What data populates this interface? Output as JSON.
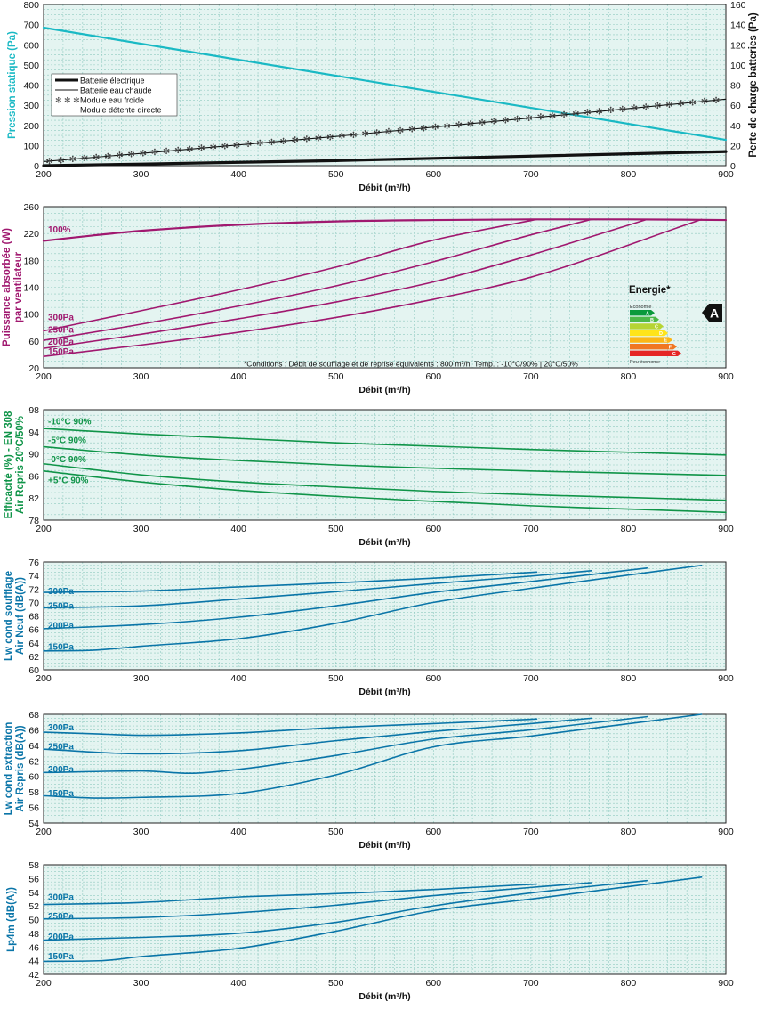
{
  "colors": {
    "background": "#e4f4f1",
    "grid": "#8fc9c0",
    "teal": "#1ab9c4",
    "purple": "#a0186f",
    "green": "#0f9448",
    "blue": "#0a75a8",
    "dark": "#111111"
  },
  "chart_data": [
    {
      "type": "line",
      "xlabel": "Débit (m³/h)",
      "ylabel": "Pression statique (Pa)",
      "ylabel_right": "Perte de charge batteries (Pa)",
      "xlim": [
        200,
        900
      ],
      "ylim": [
        0,
        800
      ],
      "ylim_right": [
        0,
        160
      ],
      "x_ticks": [
        200,
        300,
        400,
        500,
        600,
        700,
        800,
        900
      ],
      "y_ticks": [
        0,
        100,
        200,
        300,
        400,
        500,
        600,
        700,
        800
      ],
      "y_ticks_right": [
        0,
        20,
        40,
        60,
        80,
        100,
        120,
        140,
        160
      ],
      "grid": true,
      "legend_position": "left",
      "legend": [
        {
          "label": "Batterie électrique",
          "style": "thick"
        },
        {
          "label": "Batterie eau chaude",
          "style": "thin"
        },
        {
          "label": "Module eau froide",
          "style": "star",
          "symbol": "✻ ✻ ✻"
        },
        {
          "label": "Module détente directe",
          "style": "none"
        }
      ],
      "series": [
        {
          "axis": "left",
          "style": "teal",
          "x": [
            200,
            900
          ],
          "y": [
            685,
            128
          ]
        },
        {
          "axis": "right",
          "style": "thick",
          "x": [
            200,
            500,
            900
          ],
          "y": [
            0,
            5,
            14
          ]
        },
        {
          "axis": "right",
          "style": "thin",
          "x": [
            200,
            500,
            900
          ],
          "y": [
            4,
            29,
            66
          ]
        },
        {
          "axis": "right",
          "style": "star",
          "x": [
            200,
            500,
            900
          ],
          "y": [
            4,
            29,
            66
          ]
        }
      ]
    },
    {
      "type": "line",
      "xlabel": "Débit (m³/h)",
      "ylabel": "Puissance absorbée (W)",
      "ylabel2": "par ventilateur",
      "xlim": [
        200,
        900
      ],
      "ylim": [
        20,
        260
      ],
      "x_ticks": [
        200,
        300,
        400,
        500,
        600,
        700,
        800,
        900
      ],
      "y_ticks": [
        20,
        60,
        100,
        140,
        180,
        220,
        260
      ],
      "grid": true,
      "note": "*Conditions : Débit de soufflage et de reprise équivalents : 800 m³/h. Temp. : -10°C/90% | 20°C/50%",
      "energy": {
        "title": "Energie*",
        "top_label": "Economie",
        "bottom_label": "Peu économe",
        "classes": [
          "A",
          "B",
          "C",
          "D",
          "E",
          "F",
          "G"
        ],
        "class_colors": [
          "#0a9a3c",
          "#4db848",
          "#b6d433",
          "#ffe41a",
          "#fbb616",
          "#f07621",
          "#e52525"
        ],
        "rating": "A"
      },
      "series_labels": [
        {
          "text": "100%",
          "x": 200,
          "y": 227
        },
        {
          "text": "300Pa",
          "x": 200,
          "y": 96
        },
        {
          "text": "250Pa",
          "x": 200,
          "y": 78
        },
        {
          "text": "200Pa",
          "x": 200,
          "y": 60
        },
        {
          "text": "150Pa",
          "x": 200,
          "y": 45
        }
      ],
      "series": [
        {
          "name": "100%",
          "x": [
            200,
            250,
            300,
            400,
            500,
            600,
            700,
            800,
            900
          ],
          "y": [
            209,
            217,
            224,
            233,
            238,
            240,
            241,
            241,
            240
          ]
        },
        {
          "name": "300Pa",
          "x": [
            200,
            300,
            400,
            500,
            600,
            706
          ],
          "y": [
            75,
            105,
            136,
            170,
            210,
            241
          ]
        },
        {
          "name": "250Pa",
          "x": [
            200,
            300,
            400,
            500,
            600,
            700,
            762
          ],
          "y": [
            61,
            85,
            112,
            142,
            178,
            218,
            241
          ]
        },
        {
          "name": "200Pa",
          "x": [
            200,
            300,
            400,
            500,
            600,
            700,
            819
          ],
          "y": [
            49,
            70,
            93,
            118,
            148,
            188,
            241
          ]
        },
        {
          "name": "150Pa",
          "x": [
            200,
            300,
            400,
            500,
            600,
            700,
            875
          ],
          "y": [
            37,
            54,
            73,
            95,
            122,
            155,
            241
          ]
        }
      ]
    },
    {
      "type": "line",
      "xlabel": "Débit (m³/h)",
      "ylabel": "Efficacité (%) - EN 308",
      "ylabel2": "Air Repris 20°C/50%",
      "xlim": [
        200,
        900
      ],
      "ylim": [
        78,
        98
      ],
      "x_ticks": [
        200,
        300,
        400,
        500,
        600,
        700,
        800,
        900
      ],
      "y_ticks": [
        78,
        82,
        86,
        90,
        94,
        98
      ],
      "grid": true,
      "series_labels": [
        {
          "text": "-10°C 90%",
          "x": 200,
          "y": 96
        },
        {
          "text": "-5°C 90%",
          "x": 200,
          "y": 92.6
        },
        {
          "text": "-0°C 90%",
          "x": 200,
          "y": 89.1
        },
        {
          "text": "+5°C 90%",
          "x": 200,
          "y": 85.3
        }
      ],
      "series": [
        {
          "name": "-10°C 90%",
          "x": [
            200,
            300,
            400,
            500,
            600,
            700,
            800,
            900
          ],
          "y": [
            94.6,
            93.6,
            92.8,
            92.0,
            91.4,
            90.8,
            90.3,
            89.8
          ]
        },
        {
          "name": "-5°C 90%",
          "x": [
            200,
            300,
            400,
            500,
            600,
            700,
            800,
            900
          ],
          "y": [
            91.3,
            89.8,
            88.8,
            88.0,
            87.4,
            86.9,
            86.5,
            86.1
          ]
        },
        {
          "name": "-0°C 90%",
          "x": [
            200,
            300,
            400,
            500,
            600,
            700,
            800,
            900
          ],
          "y": [
            88.2,
            86.2,
            84.9,
            84.0,
            83.2,
            82.6,
            82.1,
            81.6
          ]
        },
        {
          "name": "+5°C 90%",
          "x": [
            200,
            300,
            400,
            500,
            600,
            700,
            800,
            900
          ],
          "y": [
            86.9,
            84.9,
            83.4,
            82.3,
            81.4,
            80.6,
            80.0,
            79.4
          ]
        }
      ]
    },
    {
      "type": "line",
      "xlabel": "Débit (m³/h)",
      "ylabel": "Lw cond soufflage",
      "ylabel2": "Air Neuf (dB(A))",
      "xlim": [
        200,
        900
      ],
      "ylim": [
        60,
        76
      ],
      "x_ticks": [
        200,
        300,
        400,
        500,
        600,
        700,
        800,
        900
      ],
      "y_ticks": [
        60,
        62,
        64,
        66,
        68,
        70,
        72,
        74,
        76
      ],
      "grid": true,
      "series_labels": [
        {
          "text": "300Pa",
          "x": 200,
          "y": 71.8
        },
        {
          "text": "250Pa",
          "x": 200,
          "y": 69.6
        },
        {
          "text": "200Pa",
          "x": 200,
          "y": 66.7
        },
        {
          "text": "150Pa",
          "x": 200,
          "y": 63.5
        }
      ],
      "series": [
        {
          "name": "300Pa",
          "x": [
            200,
            300,
            400,
            500,
            600,
            706
          ],
          "y": [
            71.5,
            71.7,
            72.3,
            72.9,
            73.6,
            74.5
          ]
        },
        {
          "name": "250Pa",
          "x": [
            200,
            300,
            400,
            500,
            600,
            700,
            762
          ],
          "y": [
            69.2,
            69.5,
            70.5,
            71.6,
            72.8,
            73.9,
            74.7
          ]
        },
        {
          "name": "200Pa",
          "x": [
            200,
            300,
            400,
            500,
            600,
            700,
            819
          ],
          "y": [
            66.1,
            66.7,
            67.8,
            69.5,
            71.5,
            73.1,
            75.1
          ]
        },
        {
          "name": "150Pa",
          "x": [
            200,
            250,
            300,
            400,
            500,
            600,
            700,
            875
          ],
          "y": [
            62.8,
            62.9,
            63.5,
            64.6,
            66.9,
            70.0,
            72.1,
            75.5
          ]
        }
      ]
    },
    {
      "type": "line",
      "xlabel": "Débit (m³/h)",
      "ylabel": "Lw cond extraction",
      "ylabel2": "Air Repris (dB(A))",
      "xlim": [
        200,
        900
      ],
      "ylim": [
        54,
        68
      ],
      "x_ticks": [
        200,
        300,
        400,
        500,
        600,
        700,
        800,
        900
      ],
      "y_ticks": [
        54,
        56,
        58,
        60,
        62,
        64,
        66,
        68
      ],
      "grid": true,
      "series_labels": [
        {
          "text": "300Pa",
          "x": 200,
          "y": 66.4
        },
        {
          "text": "250Pa",
          "x": 200,
          "y": 63.9
        },
        {
          "text": "200Pa",
          "x": 200,
          "y": 61.0
        },
        {
          "text": "150Pa",
          "x": 200,
          "y": 57.9
        }
      ],
      "series": [
        {
          "name": "300Pa",
          "x": [
            200,
            250,
            300,
            400,
            500,
            600,
            690,
            706
          ],
          "y": [
            65.7,
            65.5,
            65.3,
            65.6,
            66.3,
            66.8,
            67.3,
            67.4
          ]
        },
        {
          "name": "250Pa",
          "x": [
            200,
            300,
            400,
            500,
            600,
            700,
            762
          ],
          "y": [
            63.5,
            62.9,
            63.3,
            64.6,
            65.8,
            66.8,
            67.5
          ]
        },
        {
          "name": "200Pa",
          "x": [
            200,
            300,
            350,
            400,
            500,
            600,
            700,
            819
          ],
          "y": [
            60.5,
            60.7,
            60.4,
            60.9,
            62.7,
            64.8,
            66.0,
            67.7
          ]
        },
        {
          "name": "150Pa",
          "x": [
            200,
            260,
            300,
            400,
            500,
            600,
            700,
            875
          ],
          "y": [
            57.5,
            57.2,
            57.3,
            57.8,
            60.2,
            63.8,
            65.2,
            68.0
          ]
        }
      ]
    },
    {
      "type": "line",
      "xlabel": "Débit (m³/h)",
      "ylabel": "Lp4m (dB(A))",
      "xlim": [
        200,
        900
      ],
      "ylim": [
        42,
        58
      ],
      "x_ticks": [
        200,
        300,
        400,
        500,
        600,
        700,
        800,
        900
      ],
      "y_ticks": [
        42,
        44,
        46,
        48,
        50,
        52,
        54,
        56,
        58
      ],
      "grid": true,
      "series_labels": [
        {
          "text": "300Pa",
          "x": 200,
          "y": 53.4
        },
        {
          "text": "250Pa",
          "x": 200,
          "y": 50.6
        },
        {
          "text": "200Pa",
          "x": 200,
          "y": 47.6
        },
        {
          "text": "150Pa",
          "x": 200,
          "y": 44.7
        }
      ],
      "series": [
        {
          "name": "300Pa",
          "x": [
            200,
            300,
            400,
            500,
            600,
            706
          ],
          "y": [
            52.2,
            52.5,
            53.3,
            53.8,
            54.4,
            55.2
          ]
        },
        {
          "name": "250Pa",
          "x": [
            200,
            300,
            400,
            500,
            600,
            700,
            762
          ],
          "y": [
            50.1,
            50.3,
            51.0,
            52.1,
            53.5,
            54.7,
            55.4
          ]
        },
        {
          "name": "200Pa",
          "x": [
            200,
            300,
            400,
            500,
            600,
            700,
            819
          ],
          "y": [
            47.0,
            47.4,
            48.0,
            49.6,
            52.0,
            53.9,
            55.7
          ]
        },
        {
          "name": "150Pa",
          "x": [
            200,
            260,
            300,
            400,
            500,
            600,
            700,
            875
          ],
          "y": [
            43.9,
            44.0,
            44.6,
            45.8,
            48.3,
            51.3,
            53.0,
            56.2
          ]
        }
      ]
    }
  ]
}
